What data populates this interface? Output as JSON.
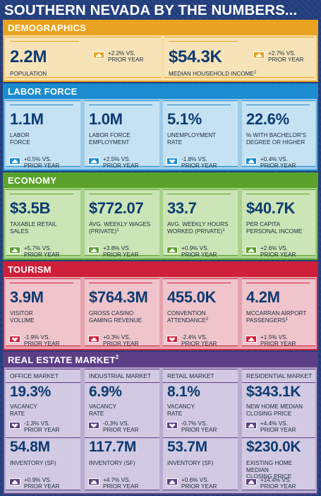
{
  "title": "SOUTHERN NEVADA BY THE NUMBERS...",
  "colors": {
    "demographics": "#f5a623",
    "labor": "#1b8ccf",
    "economy": "#5aa22c",
    "tourism": "#cf1f3a",
    "realestate": "#5c3f86"
  },
  "demographics": {
    "heading": "DEMOGRAPHICS",
    "cards": [
      {
        "value": "2.2M",
        "label": "POPULATION",
        "sup": "",
        "change": "+2.2% VS.\nPRIOR YEAR",
        "direction": "up"
      },
      {
        "value": "$54.3K",
        "label": "MEDIAN HOUSEHOLD INCOME",
        "sup": "2",
        "change": "+2.7% VS.\nPRIOR YEAR",
        "direction": "up"
      }
    ]
  },
  "labor": {
    "heading": "LABOR FORCE",
    "cards": [
      {
        "value": "1.1M",
        "label": "LABOR\nFORCE",
        "sup": "",
        "change": "+0.5% VS.\nPRIOR YEAR",
        "direction": "up"
      },
      {
        "value": "1.0M",
        "label": "LABOR FORCE\nEMPLOYMENT",
        "sup": "",
        "change": "+2.5% VS.\nPRIOR YEAR",
        "direction": "up"
      },
      {
        "value": "5.1%",
        "label": "UNEMPLOYMENT\nRATE",
        "sup": "",
        "change": "-1.8% VS.\nPRIOR YEAR",
        "direction": "down"
      },
      {
        "value": "22.6%",
        "label": "% WITH BACHELOR'S\nDEGREE OR HIGHER",
        "sup": "",
        "change": "+0.4% VS.\nPRIOR YEAR",
        "direction": "up"
      }
    ]
  },
  "economy": {
    "heading": "ECONOMY",
    "cards": [
      {
        "value": "$3.5B",
        "label": "TAXABLE RETAIL\nSALES",
        "sup": "",
        "change": "+5.7% VS.\nPRIOR YEAR",
        "direction": "up"
      },
      {
        "value": "$772.07",
        "label": "AVG. WEEKLY WAGES\n(PRIVATE)",
        "sup": "1",
        "change": "+3.8% VS.\nPRIOR YEAR",
        "direction": "up"
      },
      {
        "value": "33.7",
        "label": "AVG. WEEKLY HOURS\nWORKED (PRIVATE)",
        "sup": "1",
        "change": "+0.9% VS.\nPRIOR YEAR",
        "direction": "up"
      },
      {
        "value": "$40.7K",
        "label": "PER CAPITA\nPERSONAL INCOME",
        "sup": "",
        "change": "+2.6% VS.\nPRIOR YEAR",
        "direction": "up"
      }
    ]
  },
  "tourism": {
    "heading": "TOURISM",
    "cards": [
      {
        "value": "3.9M",
        "label": "VISITOR\nVOLUME",
        "sup": "",
        "change": "-1.9% VS.\nPRIOR YEAR",
        "direction": "down"
      },
      {
        "value": "$764.3M",
        "label": "GROSS CASINO\nGAMING REVENUE",
        "sup": "",
        "change": "+0.3% VS.\nPRIOR YEAR",
        "direction": "up"
      },
      {
        "value": "455.0K",
        "label": "CONVENTION\nATTENDANCE",
        "sup": "2",
        "change": "-2.4% VS.\nPRIOR YEAR",
        "direction": "down"
      },
      {
        "value": "4.2M",
        "label": "MCCARRAN AIRPORT\nPASSENGERS",
        "sup": "1",
        "change": "+1.5% VS.\nPRIOR YEAR",
        "direction": "up"
      }
    ]
  },
  "realestate": {
    "heading": "REAL ESTATE MARKET",
    "heading_sup": "2",
    "columns": [
      {
        "subhead": "OFFICE MARKET",
        "top": {
          "value": "19.3%",
          "label": "VACANCY\nRATE",
          "change": "-1.3% VS.\nPRIOR YEAR",
          "direction": "down"
        },
        "bottom": {
          "value": "54.8M",
          "label": "INVENTORY (SF)",
          "change": "+0.9% VS.\nPRIOR YEAR",
          "direction": "up"
        }
      },
      {
        "subhead": "INDUSTRIAL MARKET",
        "top": {
          "value": "6.9%",
          "label": "VACANCY\nRATE",
          "change": "-0.3% VS.\nPRIOR YEAR",
          "direction": "down"
        },
        "bottom": {
          "value": "117.7M",
          "label": "INVENTORY (SF)",
          "change": "+4.7% VS.\nPRIOR YEAR",
          "direction": "up"
        }
      },
      {
        "subhead": "RETAIL MARKET",
        "top": {
          "value": "8.1%",
          "label": "VACANCY\nRATE",
          "change": "-0.7% VS.\nPRIOR YEAR",
          "direction": "down"
        },
        "bottom": {
          "value": "53.7M",
          "label": "INVENTORY (SF)",
          "change": "+0.6% VS.\nPRIOR YEAR",
          "direction": "up"
        }
      },
      {
        "subhead": "RESIDENTIAL MARKET",
        "top": {
          "value": "$343.1K",
          "label": "NEW HOME MEDIAN\nCLOSING PRICE",
          "change": "+4.4% VS.\nPRIOR YEAR",
          "direction": "up"
        },
        "bottom": {
          "value": "$230.0K",
          "label": "EXISTING HOME MEDIAN\nCLOSING PRICE",
          "change": "+14.4% VS.\nPRIOR YEAR",
          "direction": "up"
        }
      }
    ]
  }
}
